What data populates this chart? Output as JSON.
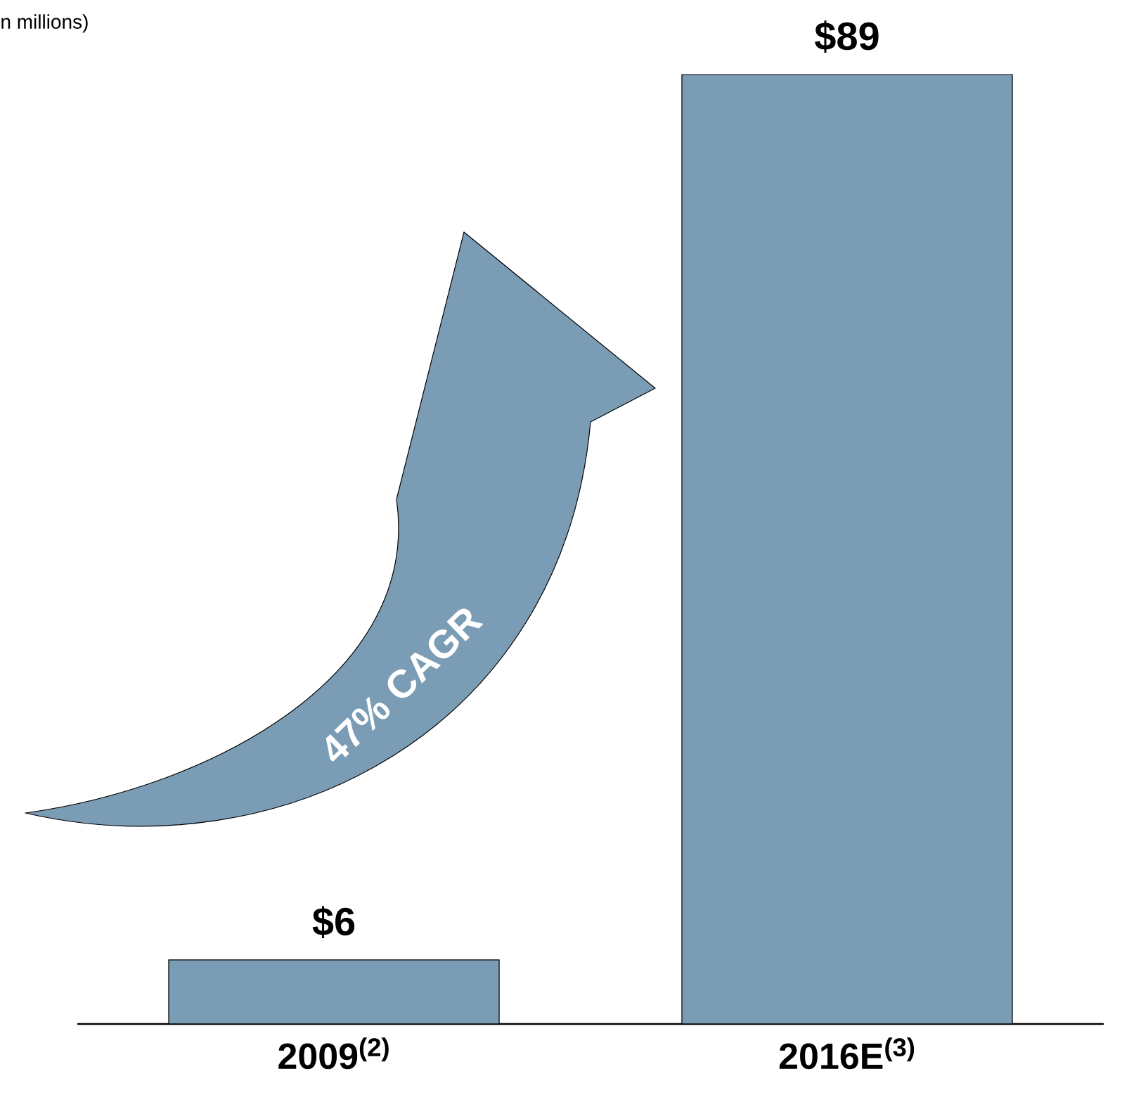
{
  "chart_data": {
    "type": "bar",
    "categories": [
      "2009$^{(2)}$",
      "2016E$^{(3)}$"
    ],
    "values": [
      6,
      89
    ],
    "value_labels": [
      "$6",
      "$89"
    ],
    "color": "#7a9db5",
    "annotations": [
      "n millions)",
      "47% CAGR"
    ]
  }
}
